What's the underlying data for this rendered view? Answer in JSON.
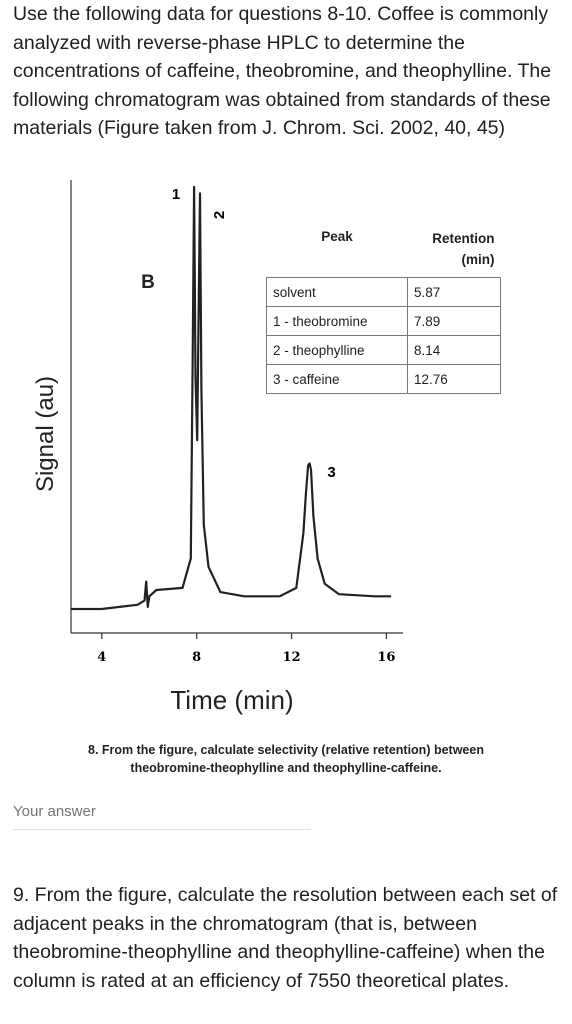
{
  "intro_text": "Use the following data for questions 8-10. Coffee is commonly analyzed with reverse-phase HPLC to determine the concentrations of caffeine, theobromine, and theophylline. The following chromatogram was obtained from standards of these materials (Figure taken from J. Chrom. Sci. 2002, 40, 45)",
  "chart_data": {
    "type": "line",
    "panel_label": "B",
    "xlabel": "Time (min)",
    "ylabel": "Signal (au)",
    "xlim": [
      2.7,
      16.7
    ],
    "x_ticks": [
      4,
      8,
      12,
      16
    ],
    "peak_labels": [
      {
        "label": "1",
        "x": 7.89
      },
      {
        "label": "2",
        "x": 8.14
      },
      {
        "label": "3",
        "x": 12.76
      }
    ],
    "series": [
      {
        "x": [
          2.7,
          4.0,
          5.5,
          5.8,
          5.87,
          5.94,
          6.0,
          6.3,
          7.4,
          7.75,
          7.83,
          7.89,
          7.95,
          8.02,
          8.08,
          8.14,
          8.2,
          8.3,
          8.5,
          9.0,
          10.0,
          11.5,
          12.2,
          12.5,
          12.6,
          12.7,
          12.76,
          12.82,
          12.92,
          13.1,
          13.4,
          14.0,
          15.5,
          16.2
        ],
        "y": [
          0.0,
          0.0,
          0.01,
          0.02,
          0.065,
          0.005,
          0.03,
          0.045,
          0.05,
          0.12,
          0.6,
          1.0,
          0.55,
          0.4,
          0.7,
          0.985,
          0.52,
          0.2,
          0.1,
          0.04,
          0.03,
          0.03,
          0.05,
          0.18,
          0.27,
          0.34,
          0.345,
          0.33,
          0.22,
          0.12,
          0.06,
          0.035,
          0.03,
          0.03
        ]
      }
    ],
    "table": {
      "headers": [
        "Peak",
        "Retention (min)"
      ],
      "rows": [
        [
          "solvent",
          "5.87"
        ],
        [
          "1 - theobromine",
          "7.89"
        ],
        [
          "2 - theophylline",
          "8.14"
        ],
        [
          "3 - caffeine",
          "12.76"
        ]
      ]
    }
  },
  "q8": {
    "line1": "8. From the figure, calculate selectivity (relative retention) between",
    "line2": "theobromine-theophylline and theophylline-caffeine."
  },
  "answer_placeholder": "Your answer",
  "q9_text": "9. From the figure, calculate the resolution between each set of adjacent peaks in the chromatogram (that is, between theobromine-theophylline and theophylline-caffeine) when the column is rated at an efficiency of 7550 theoretical plates."
}
